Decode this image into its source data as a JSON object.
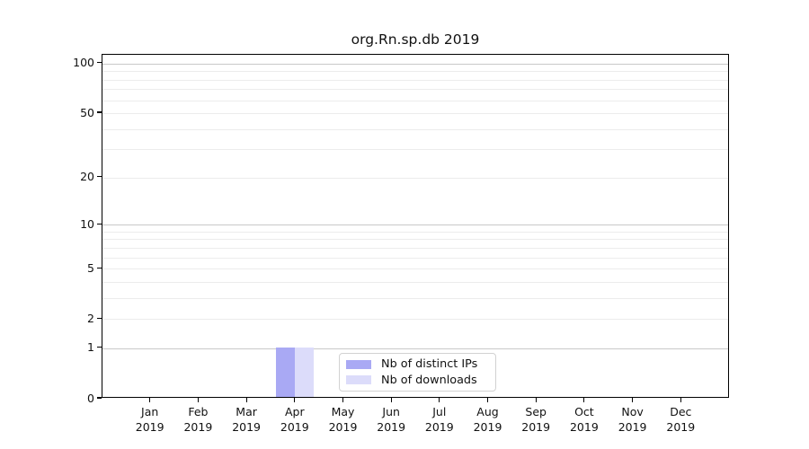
{
  "chart_data": {
    "type": "bar",
    "title": "org.Rn.sp.db 2019",
    "categories": [
      "Jan",
      "Feb",
      "Mar",
      "Apr",
      "May",
      "Jun",
      "Jul",
      "Aug",
      "Sep",
      "Oct",
      "Nov",
      "Dec"
    ],
    "category_year": "2019",
    "series": [
      {
        "name": "Nb of distinct IPs",
        "color": "#a9a9f4",
        "values": [
          0,
          0,
          0,
          1,
          0,
          0,
          0,
          0,
          0,
          0,
          0,
          0
        ]
      },
      {
        "name": "Nb of downloads",
        "color": "#dcdcfa",
        "values": [
          0,
          0,
          0,
          1,
          0,
          0,
          0,
          0,
          0,
          0,
          0,
          0
        ]
      }
    ],
    "y_axis": {
      "scale": "log1p",
      "ticks": [
        0,
        1,
        2,
        5,
        10,
        20,
        50,
        100
      ],
      "max": 113,
      "major_gridlines": [
        1,
        10,
        100
      ],
      "minor_gridlines": [
        2,
        3,
        4,
        5,
        6,
        7,
        8,
        9,
        20,
        30,
        40,
        50,
        60,
        70,
        80,
        90
      ]
    },
    "xlabel": "",
    "ylabel": "",
    "grid": "horizontal",
    "legend_position": "inside-bottom-center",
    "colors": {
      "axis": "#000000",
      "major_grid": "#c9c9c9",
      "minor_grid": "#ececec",
      "legend_border": "#d2d2d2"
    }
  }
}
